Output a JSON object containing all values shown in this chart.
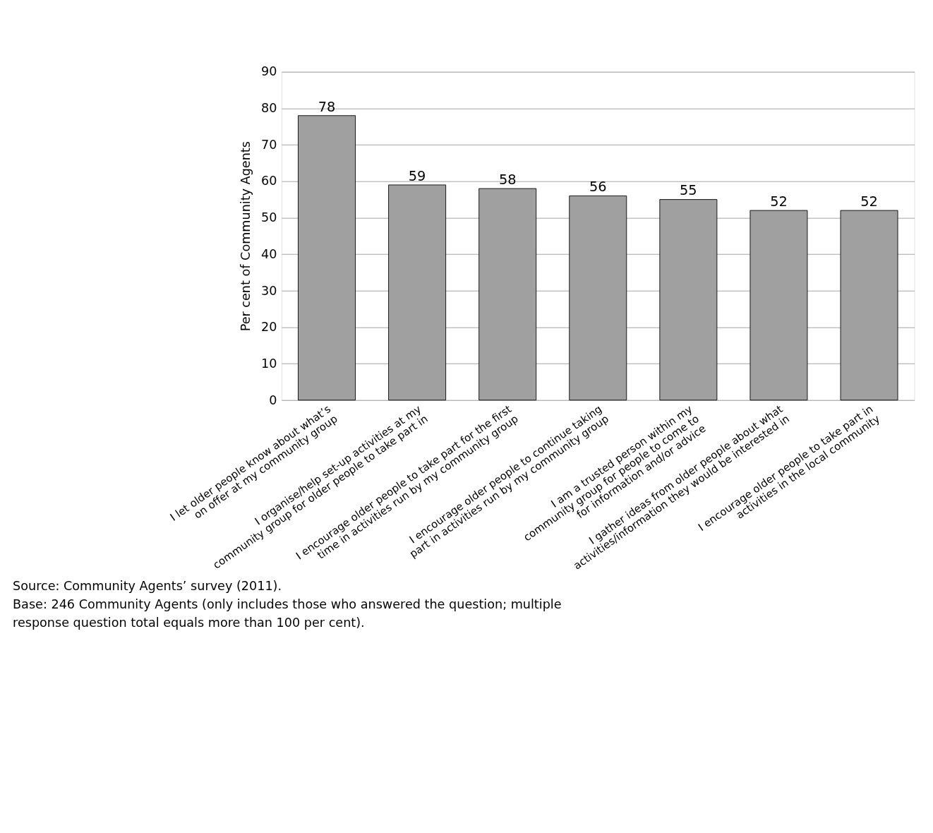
{
  "chart_data": {
    "type": "bar",
    "ylabel": "Per cent of Community Agents",
    "categories": [
      "I let older people know about what’s\non offer at my community group",
      "I organise/help set-up activities at my\ncommunity group for older people to take part in",
      "I encourage older people to take part for the first\ntime in activities run by my community group",
      "I encourage older people to continue taking\npart in activities run by my community group",
      "I am a trusted person within my\ncommunity group for people to come to\nfor information and/or advice",
      "I gather ideas from older people about what\nactivities/information they would be interested in",
      "I encourage older people to take part in\nactivities in the local community"
    ],
    "values": [
      78,
      59,
      58,
      56,
      55,
      52,
      52
    ],
    "color": "#a0a0a0",
    "ylim": [
      0,
      90
    ],
    "yticks": [
      0,
      10,
      20,
      30,
      40,
      50,
      60,
      70,
      80,
      90
    ],
    "grid": "y",
    "data_labels": true,
    "annotations": [
      "Source: Community Agents’ survey (2011).",
      "Base: 246 Community Agents (only includes those who answered the question; multiple\nresponse question total equals more than 100 per cent)."
    ]
  }
}
